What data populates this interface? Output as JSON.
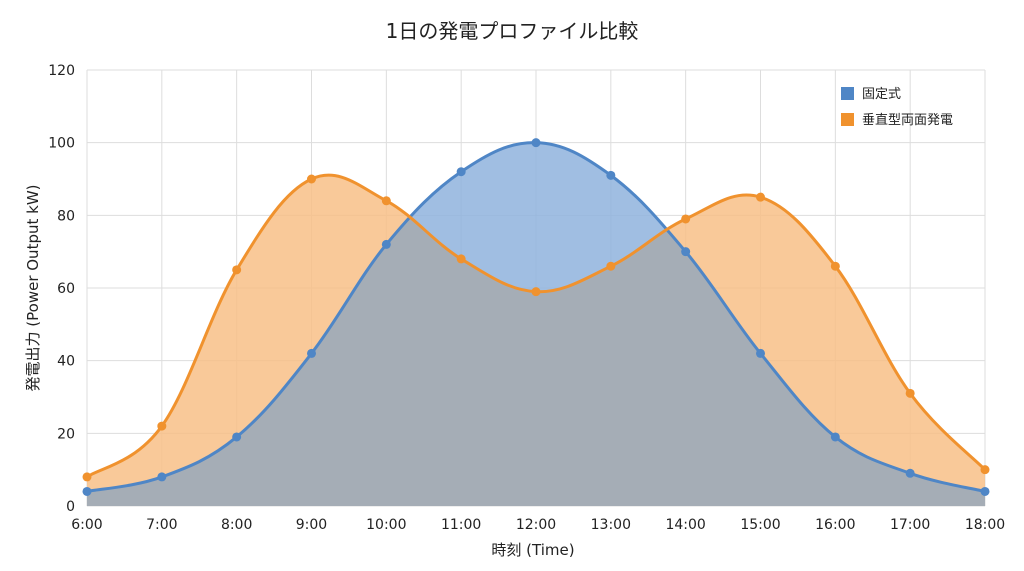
{
  "chart_data": {
    "type": "area",
    "title": "1日の発電プロファイル比較",
    "xlabel": "時刻 (Time)",
    "ylabel": "発電出力 (Power Output kW)",
    "categories": [
      "6:00",
      "7:00",
      "8:00",
      "9:00",
      "10:00",
      "11:00",
      "12:00",
      "13:00",
      "14:00",
      "15:00",
      "16:00",
      "17:00",
      "18:00"
    ],
    "ylim": [
      0,
      120
    ],
    "yticks": [
      0,
      20,
      40,
      60,
      80,
      100,
      120
    ],
    "grid": true,
    "legend_position": "top-right",
    "series": [
      {
        "name": "固定式",
        "color": "#4f86c6",
        "fill": "#8fb3dd",
        "values": [
          4,
          8,
          19,
          42,
          72,
          92,
          100,
          91,
          70,
          42,
          19,
          9,
          4
        ]
      },
      {
        "name": "垂直型両面発電",
        "color": "#f0922e",
        "fill": "#f8bf87",
        "values": [
          8,
          22,
          65,
          90,
          84,
          68,
          59,
          66,
          79,
          85,
          66,
          31,
          10
        ]
      }
    ]
  }
}
